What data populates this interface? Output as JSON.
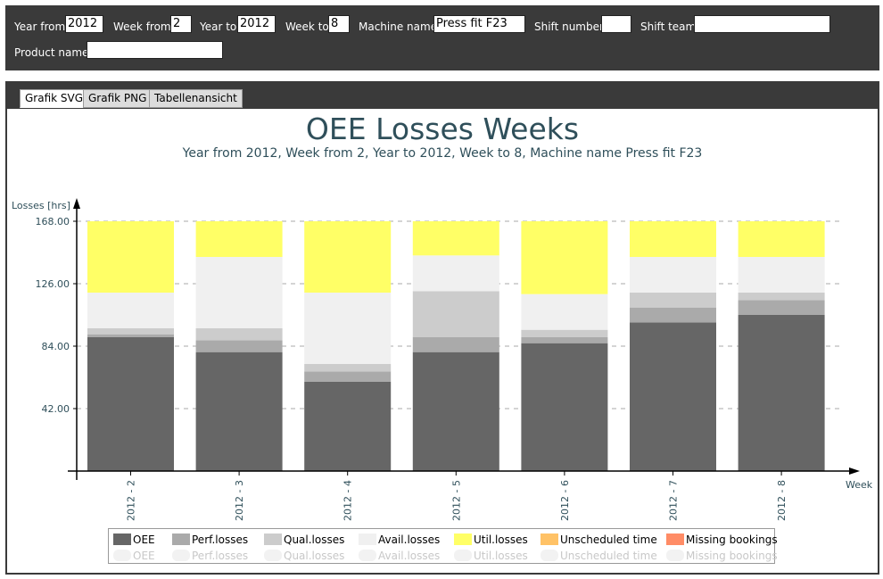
{
  "filters": {
    "year_from": {
      "label": "Year from",
      "value": "2012"
    },
    "week_from": {
      "label": "Week from",
      "value": "2"
    },
    "year_to": {
      "label": "Year to",
      "value": "2012"
    },
    "week_to": {
      "label": "Week to",
      "value": "8"
    },
    "machine_name": {
      "label": "Machine name",
      "value": "Press fit F23"
    },
    "shift_number": {
      "label": "Shift number",
      "value": ""
    },
    "shift_team": {
      "label": "Shift team",
      "value": ""
    },
    "product_name": {
      "label": "Product name",
      "value": ""
    }
  },
  "tabs": [
    {
      "label": "Grafik SVG",
      "active": true
    },
    {
      "label": "Grafik PNG",
      "active": false
    },
    {
      "label": "Tabellenansicht",
      "active": false
    }
  ],
  "chart_data": {
    "type": "bar",
    "stacked": true,
    "title": "OEE Losses Weeks",
    "subtitle": "Year from 2012, Week from 2, Year to 2012, Week to 8, Machine name Press fit F23",
    "ylabel": "Losses [hrs]",
    "xlabel": "Week",
    "ylim": [
      0,
      168
    ],
    "yticks": [
      42,
      84,
      126,
      168
    ],
    "ytick_labels": [
      "42.00",
      "84.00",
      "126.00",
      "168.00"
    ],
    "grid": true,
    "categories": [
      "2012 - 2",
      "2012 - 3",
      "2012 - 4",
      "2012 - 5",
      "2012 - 6",
      "2012 - 7",
      "2012 - 8"
    ],
    "series": [
      {
        "name": "OEE",
        "color": "#666666",
        "values": [
          90,
          80,
          60,
          80,
          86,
          100,
          105
        ]
      },
      {
        "name": "Perf.losses",
        "color": "#aaaaaa",
        "values": [
          2,
          8,
          7,
          10,
          4,
          10,
          10
        ]
      },
      {
        "name": "Qual.losses",
        "color": "#cccccc",
        "values": [
          4,
          8,
          5,
          31,
          5,
          10,
          5
        ]
      },
      {
        "name": "Avail.losses",
        "color": "#f0f0f0",
        "values": [
          24,
          48,
          48,
          24,
          24,
          24,
          24
        ]
      },
      {
        "name": "Util.losses",
        "color": "#ffff66",
        "values": [
          48,
          24,
          48,
          23,
          49,
          24,
          24
        ]
      },
      {
        "name": "Unscheduled time",
        "color": "#ffc266",
        "values": [
          0,
          0,
          0,
          0,
          0,
          0,
          0
        ]
      },
      {
        "name": "Missing bookings",
        "color": "#ff8c66",
        "values": [
          0,
          0,
          0,
          0,
          0,
          0,
          0
        ]
      }
    ],
    "legend_position": "bottom"
  }
}
